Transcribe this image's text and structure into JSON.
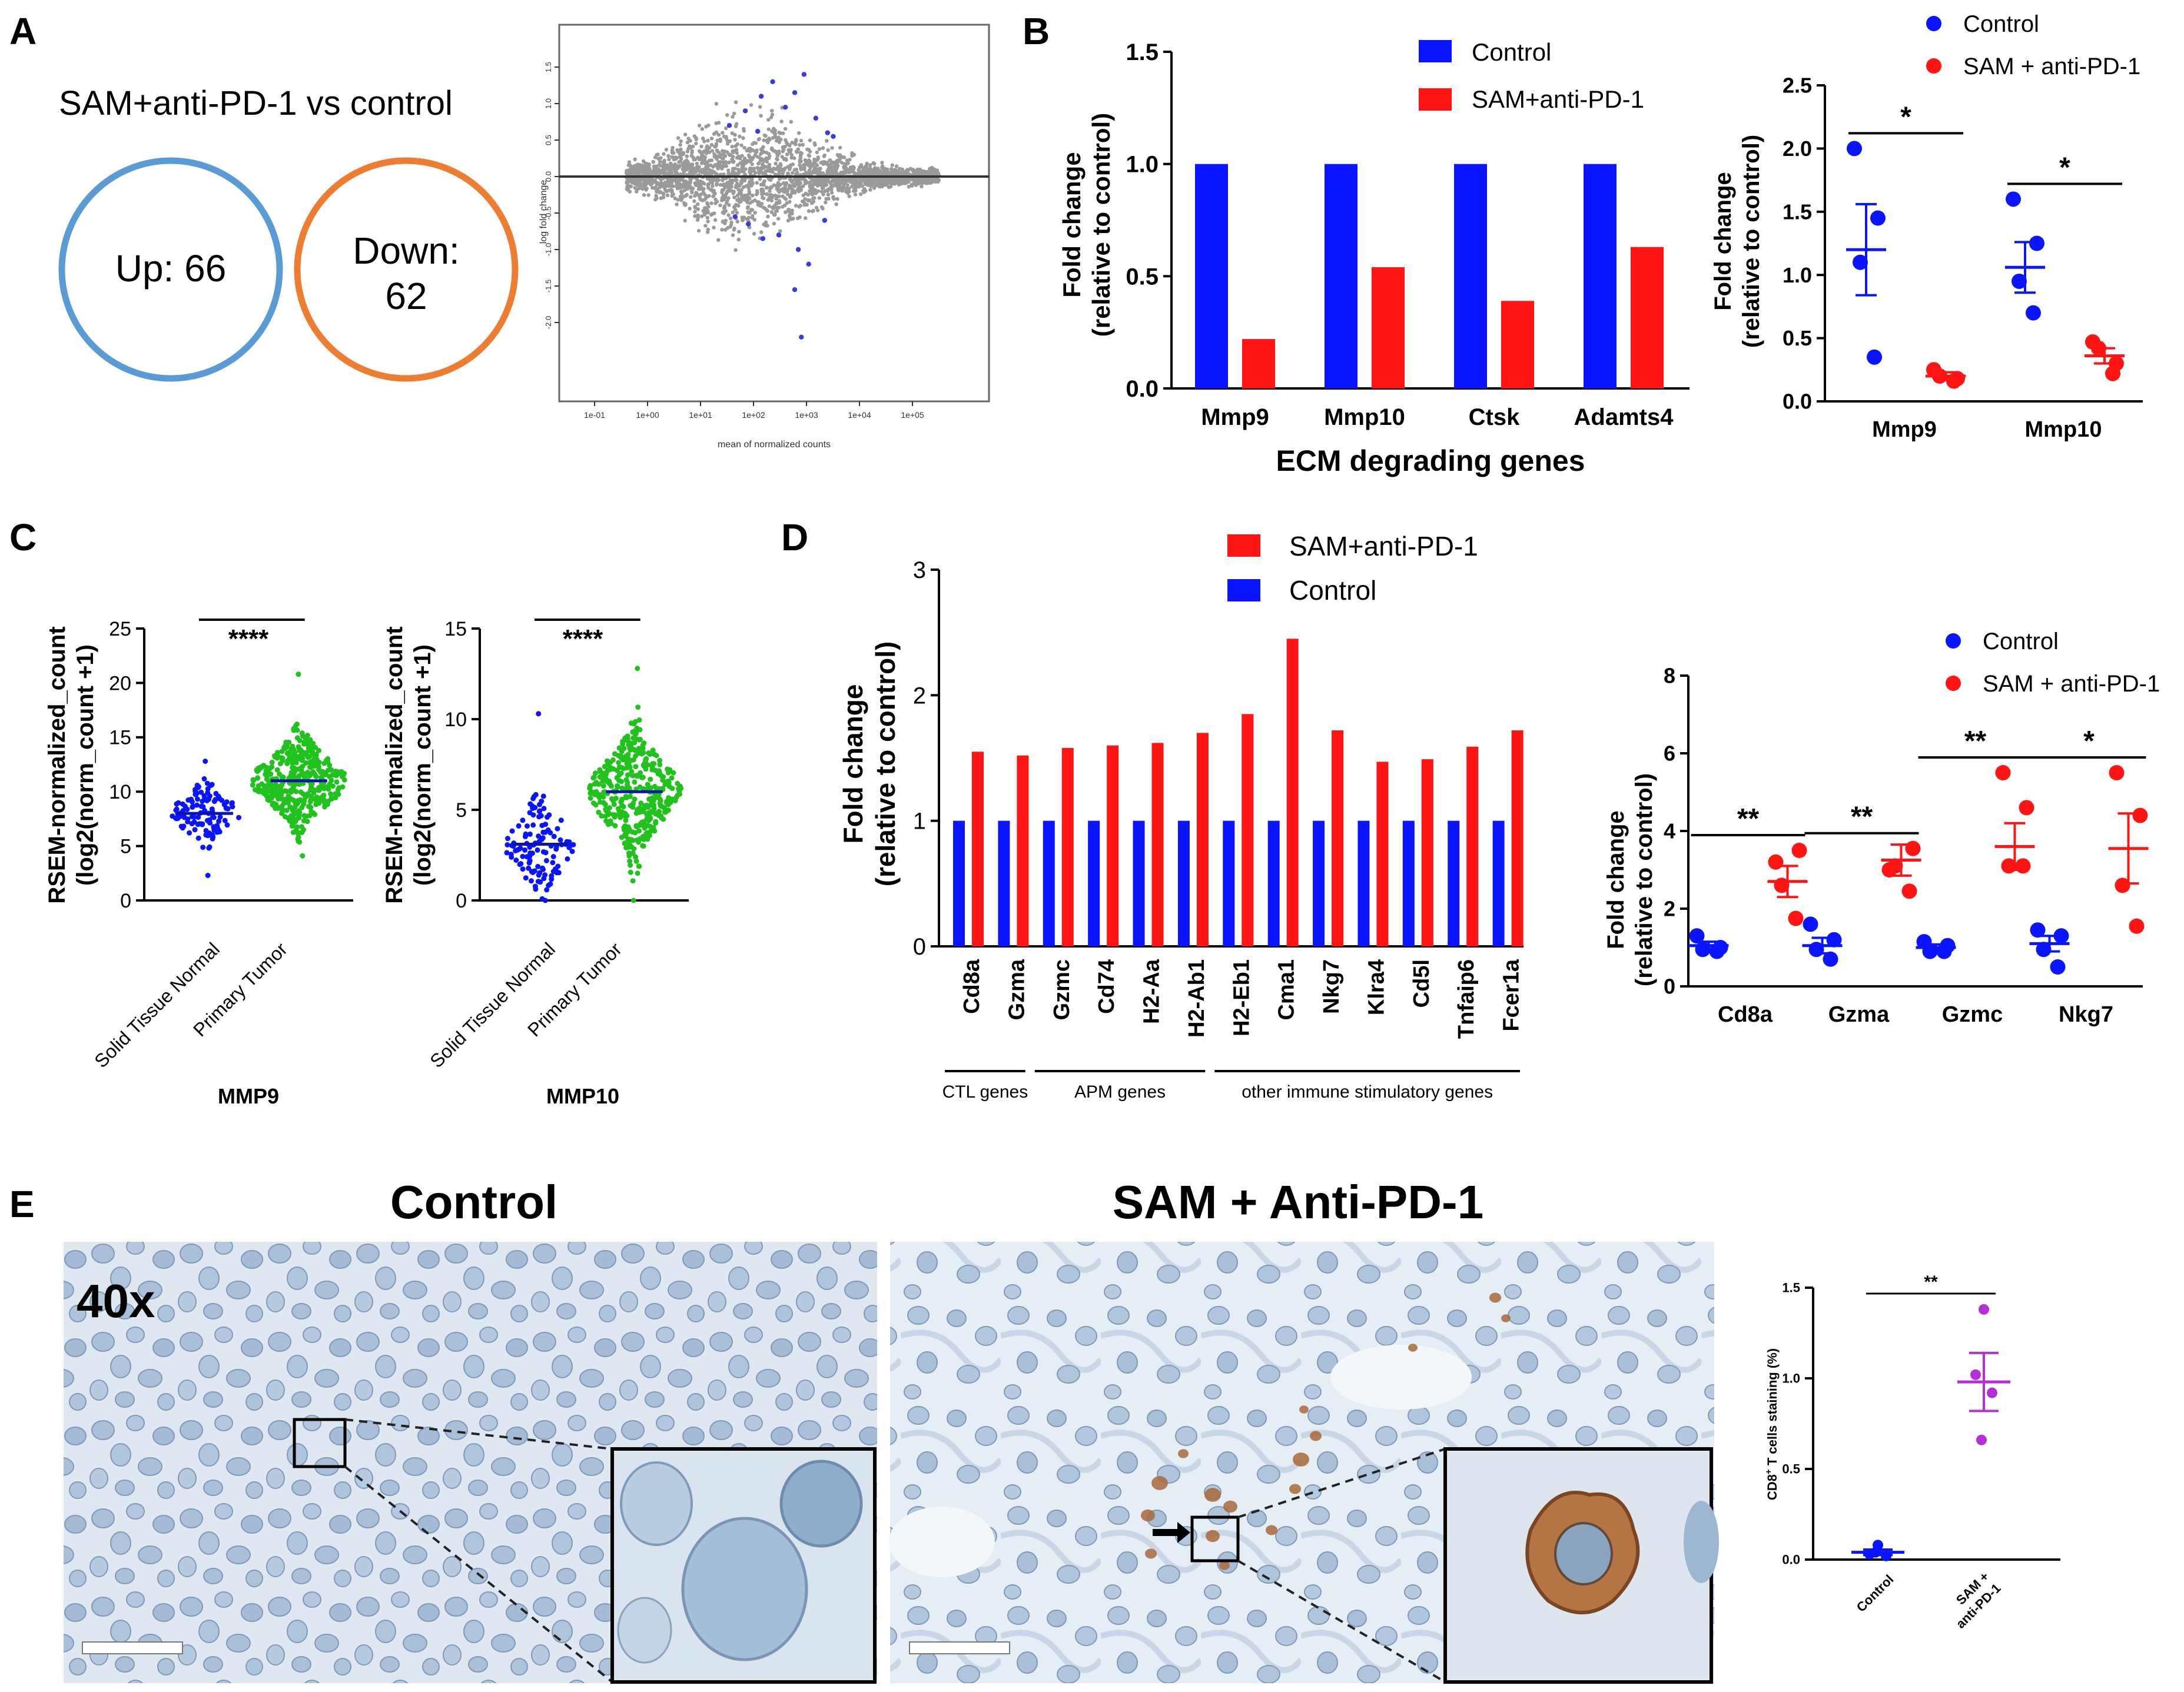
{
  "colors": {
    "control_blue": "#0a14ff",
    "sam_red": "#ff1414",
    "venn_blue": "#5b9bd5",
    "venn_orange": "#ed7d31",
    "ma_grey": "#9a9a9a",
    "ma_sig": "#3b3bd9",
    "green": "#22c21e",
    "purple": "#b42fd6",
    "tissue_bg": "#dfe8f1",
    "stain": "#a8693a"
  },
  "panel_labels": {
    "a": "A",
    "b": "B",
    "c": "C",
    "d": "D",
    "e": "E"
  },
  "panelA": {
    "title": "SAM+anti-PD-1 vs control",
    "venn_up": "Up: 66",
    "venn_down_line1": "Down:",
    "venn_down_line2": "62",
    "ma_xlabel": "mean of normalized counts",
    "ma_ylabel": "log fold change"
  },
  "chart_data": [
    {
      "id": "ma_plot",
      "type": "scatter",
      "xlabel": "mean of normalized counts",
      "ylabel": "log fold change",
      "x_scale": "log10",
      "x_ticks": [
        "1e-01",
        "1e+00",
        "1e+01",
        "1e+02",
        "1e+03",
        "1e+04",
        "1e+05"
      ],
      "y_ticks": [
        "-2.0",
        "-1.5",
        "-1.0",
        "-0.5",
        "0.0",
        "0.5",
        "1.0",
        "1.5"
      ],
      "ylim": [
        -2.2,
        1.5
      ],
      "highlighted_points": [
        [
          900,
          1.4
        ],
        [
          230,
          1.3
        ],
        [
          140,
          1.1
        ],
        [
          600,
          1.15
        ],
        [
          70,
          0.9
        ],
        [
          400,
          0.95
        ],
        [
          2500,
          0.6
        ],
        [
          1500,
          0.8
        ],
        [
          35,
          0.7
        ],
        [
          3200,
          0.55
        ],
        [
          120,
          0.62
        ],
        [
          80,
          -0.65
        ],
        [
          300,
          -0.8
        ],
        [
          700,
          -1.0
        ],
        [
          1100,
          -1.2
        ],
        [
          600,
          -1.55
        ],
        [
          800,
          -2.2
        ],
        [
          2200,
          -0.6
        ],
        [
          150,
          -0.85
        ],
        [
          45,
          -0.55
        ]
      ]
    },
    {
      "id": "b_bar",
      "type": "bar",
      "categories": [
        "Mmp9",
        "Mmp10",
        "Ctsk",
        "Adamts4"
      ],
      "series": [
        {
          "name": "Control",
          "values": [
            1,
            1,
            1,
            1
          ]
        },
        {
          "name": "SAM+anti-PD-1",
          "values": [
            0.22,
            0.54,
            0.39,
            0.63
          ]
        }
      ],
      "xlabel": "ECM degrading genes",
      "ylabel": "Fold change\n(relative to control)",
      "y_ticks": [
        "0.0",
        "0.5",
        "1.0",
        "1.5"
      ],
      "ylim": [
        0,
        1.5
      ],
      "legend": "top-right"
    },
    {
      "id": "b_dot",
      "type": "scatter",
      "categories": [
        "Mmp9",
        "Mmp10"
      ],
      "series": [
        {
          "name": "Control",
          "points": [
            [
              2.0,
              1.45,
              1.1,
              0.35
            ],
            [
              1.6,
              1.25,
              0.95,
              0.7
            ]
          ],
          "mean": [
            1.2,
            1.06
          ],
          "sem": [
            0.36,
            0.2
          ]
        },
        {
          "name": "SAM + anti-PD-1",
          "points": [
            [
              0.25,
              0.18,
              0.2,
              0.16
            ],
            [
              0.47,
              0.3,
              0.42,
              0.22
            ]
          ],
          "mean": [
            0.2,
            0.36
          ],
          "sem": [
            0.03,
            0.06
          ]
        }
      ],
      "significance": [
        "*",
        "*"
      ],
      "ylabel": "Fold change\n(relative to control)",
      "y_ticks": [
        "0.0",
        "0.5",
        "1.0",
        "1.5",
        "2.0",
        "2.5"
      ],
      "ylim": [
        0,
        2.5
      ],
      "legend": "top-right"
    },
    {
      "id": "c_mmp9",
      "type": "scatter",
      "categories": [
        "Solid Tissue Normal",
        "Primary Tumor"
      ],
      "means": [
        8.0,
        11.0
      ],
      "n_points": [
        120,
        420
      ],
      "ranges": [
        [
          2.3,
          12.8
        ],
        [
          4.1,
          20.8
        ]
      ],
      "significance": "****",
      "title": "MMP9",
      "ylabel": "RSEM-normalized_count\n(log2(norm_count +1)",
      "y_ticks": [
        "0",
        "5",
        "10",
        "15",
        "20",
        "25"
      ],
      "ylim": [
        0,
        25
      ]
    },
    {
      "id": "c_mmp10",
      "type": "scatter",
      "categories": [
        "Solid Tissue Normal",
        "Primary Tumor"
      ],
      "means": [
        3.1,
        6.0
      ],
      "n_points": [
        120,
        420
      ],
      "ranges": [
        [
          0,
          10.3
        ],
        [
          0,
          12.8
        ]
      ],
      "significance": "****",
      "title": "MMP10",
      "ylabel": "RSEM-normalized_count\n(log2(norm_count +1)",
      "y_ticks": [
        "0",
        "5",
        "10",
        "15"
      ],
      "ylim": [
        0,
        15
      ]
    },
    {
      "id": "d_bar",
      "type": "bar",
      "categories": [
        "Cd8a",
        "Gzma",
        "Gzmc",
        "Cd74",
        "H2-Aa",
        "H2-Ab1",
        "H2-Eb1",
        "Cma1",
        "Nkg7",
        "Klra4",
        "Cd5l",
        "Tnfaip6",
        "Fcer1a"
      ],
      "series": [
        {
          "name": "Control",
          "values": [
            1,
            1,
            1,
            1,
            1,
            1,
            1,
            1,
            1,
            1,
            1,
            1,
            1
          ]
        },
        {
          "name": "SAM+anti-PD-1",
          "values": [
            1.55,
            1.52,
            1.58,
            1.6,
            1.62,
            1.7,
            1.85,
            2.45,
            1.72,
            1.47,
            1.49,
            1.59,
            1.72
          ]
        }
      ],
      "groups": [
        {
          "label": "CTL genes",
          "span": [
            0,
            1
          ]
        },
        {
          "label": "APM genes",
          "span": [
            2,
            5
          ]
        },
        {
          "label": "other immune stimulatory genes",
          "span": [
            6,
            12
          ]
        }
      ],
      "ylabel": "Fold change\n(relative to control)",
      "y_ticks": [
        "0",
        "1",
        "2",
        "3"
      ],
      "ylim": [
        0,
        3
      ],
      "legend": "top"
    },
    {
      "id": "d_dot",
      "type": "scatter",
      "categories": [
        "Cd8a",
        "Gzma",
        "Gzmc",
        "Nkg7"
      ],
      "series": [
        {
          "name": "Control",
          "points": [
            [
              1.3,
              1.0,
              0.95,
              0.9
            ],
            [
              1.6,
              1.2,
              0.95,
              0.7
            ],
            [
              1.15,
              1.05,
              0.9,
              0.9
            ],
            [
              1.45,
              1.3,
              0.95,
              0.5
            ]
          ],
          "mean": [
            1.05,
            1.05,
            1.0,
            1.1
          ],
          "sem": [
            0.1,
            0.2,
            0.08,
            0.2
          ]
        },
        {
          "name": "SAM + anti-PD-1",
          "points": [
            [
              3.2,
              3.5,
              2.6,
              1.75
            ],
            [
              3.0,
              3.55,
              3.1,
              2.45
            ],
            [
              5.5,
              4.6,
              3.1,
              3.1
            ],
            [
              5.5,
              4.4,
              2.6,
              1.55
            ]
          ],
          "mean": [
            2.7,
            3.25,
            3.6,
            3.55
          ],
          "sem": [
            0.4,
            0.4,
            0.6,
            0.9
          ]
        }
      ],
      "significance": [
        "**",
        "**",
        "**",
        "*"
      ],
      "ylabel": "Fold change\n(relative to control)",
      "y_ticks": [
        "0",
        "2",
        "4",
        "6",
        "8"
      ],
      "ylim": [
        0,
        8
      ],
      "legend": "top-right"
    },
    {
      "id": "e_dot",
      "type": "scatter",
      "categories": [
        "Control",
        "SAM +\nanti-PD-1"
      ],
      "series": [
        {
          "name": "Control",
          "points": [
            0.08,
            0.03,
            0.02,
            0.04
          ],
          "mean": 0.04,
          "sem": 0.015
        },
        {
          "name": "SAM + anti-PD-1",
          "points": [
            1.38,
            1.02,
            0.92,
            0.66
          ],
          "mean": 0.98,
          "sem": 0.16
        }
      ],
      "significance": "**",
      "ylabel": "CD8+ T cells staining (%)",
      "y_ticks": [
        "0.0",
        "0.5",
        "1.0",
        "1.5"
      ],
      "ylim": [
        0,
        1.5
      ]
    }
  ],
  "panelB": {
    "legend_control": "Control",
    "legend_sam": "SAM+anti-PD-1",
    "xlabel": "ECM degrading genes",
    "ylabel1": "Fold change",
    "ylabel2": "(relative to control)",
    "dot_legend_control": "Control",
    "dot_legend_sam": "SAM + anti-PD-1"
  },
  "panelC": {
    "ylabel1": "RSEM-normalized_count",
    "ylabel2": "(log2(norm_count +1)",
    "cat_normal": "Solid Tissue Normal",
    "cat_tumor": "Primary Tumor",
    "title_mmp9": "MMP9",
    "title_mmp10": "MMP10",
    "sig": "****"
  },
  "panelD": {
    "legend_sam": "SAM+anti-PD-1",
    "legend_control": "Control",
    "ylabel1": "Fold change",
    "ylabel2": "(relative to control)",
    "dot_legend_control": "Control",
    "dot_legend_sam": "SAM + anti-PD-1"
  },
  "panelE": {
    "title_control": "Control",
    "title_sam": "SAM + Anti-PD-1",
    "magnification": "40x",
    "ylabel_prefix": "CD8",
    "ylabel_sup": "+",
    "ylabel_suffix": " T cells staining (%)",
    "cat_control": "Control",
    "cat_sam_line1": "SAM +",
    "cat_sam_line2": "anti-PD-1",
    "sig": "**"
  }
}
